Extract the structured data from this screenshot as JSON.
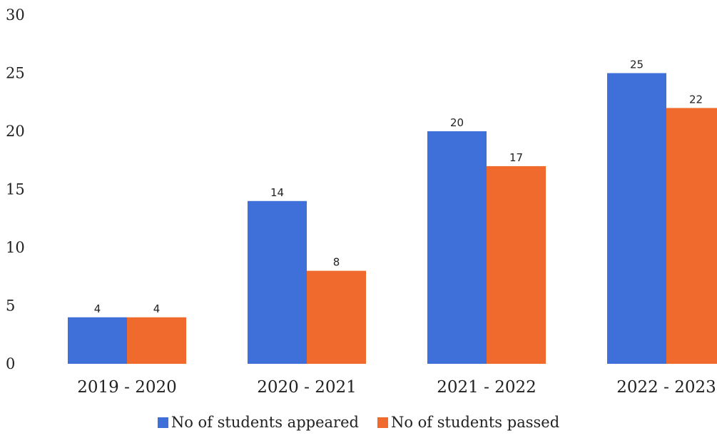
{
  "chart_data": {
    "type": "bar",
    "categories": [
      "2019 - 2020",
      "2020 - 2021",
      "2021 - 2022",
      "2022 - 2023"
    ],
    "series": [
      {
        "name": "No of students appeared",
        "values": [
          4,
          14,
          20,
          25
        ],
        "color": "#3F6FD8"
      },
      {
        "name": "No of students passed",
        "values": [
          4,
          8,
          17,
          22
        ],
        "color": "#F06A2D"
      }
    ],
    "yticks": [
      "0",
      "5",
      "10",
      "15",
      "20",
      "25",
      "30"
    ],
    "ylim": [
      0,
      30
    ],
    "grid": false,
    "legend_position": "bottom"
  }
}
